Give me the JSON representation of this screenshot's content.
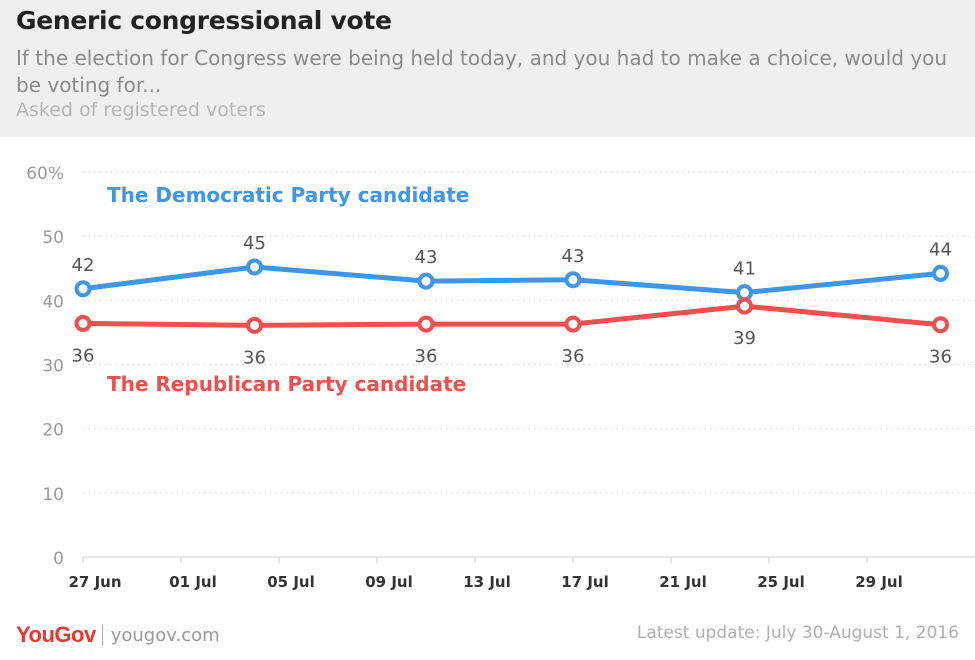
{
  "header": {
    "title": "Generic congressional vote",
    "subtitle": "If the election for Congress were being held today, and you had to make a choice, would you be voting for...",
    "note": "Asked of registered voters"
  },
  "footer": {
    "brand": "YouGov",
    "url": "yougov.com",
    "update": "Latest update: July 30-August 1, 2016"
  },
  "chart_data": {
    "type": "line",
    "title": "Generic congressional vote",
    "x": [
      "2016-06-27",
      "2016-07-04",
      "2016-07-11",
      "2016-07-17",
      "2016-07-24",
      "2016-08-01"
    ],
    "x_ticks": [
      "27 Jun",
      "01 Jul",
      "05 Jul",
      "09 Jul",
      "13 Jul",
      "17 Jul",
      "21 Jul",
      "25 Jul",
      "29 Jul"
    ],
    "x_range": [
      "2016-06-27",
      "2016-08-01"
    ],
    "ylim": [
      0,
      60
    ],
    "y_ticks": [
      "0",
      "10",
      "20",
      "30",
      "40",
      "50",
      "60%"
    ],
    "y_tick_values": [
      0,
      10,
      20,
      30,
      40,
      50,
      60
    ],
    "grid": true,
    "series": [
      {
        "name": "The Democratic Party candidate",
        "color": "#3d96ea",
        "values": [
          42,
          45,
          43,
          43,
          41,
          44
        ],
        "plot_values": [
          41.8,
          45.2,
          43.0,
          43.2,
          41.2,
          44.2
        ]
      },
      {
        "name": "The Republican Party candidate",
        "color": "#f24e4e",
        "values": [
          36,
          36,
          36,
          36,
          39,
          36
        ],
        "plot_values": [
          36.4,
          36.1,
          36.3,
          36.3,
          39.1,
          36.2
        ]
      }
    ]
  }
}
